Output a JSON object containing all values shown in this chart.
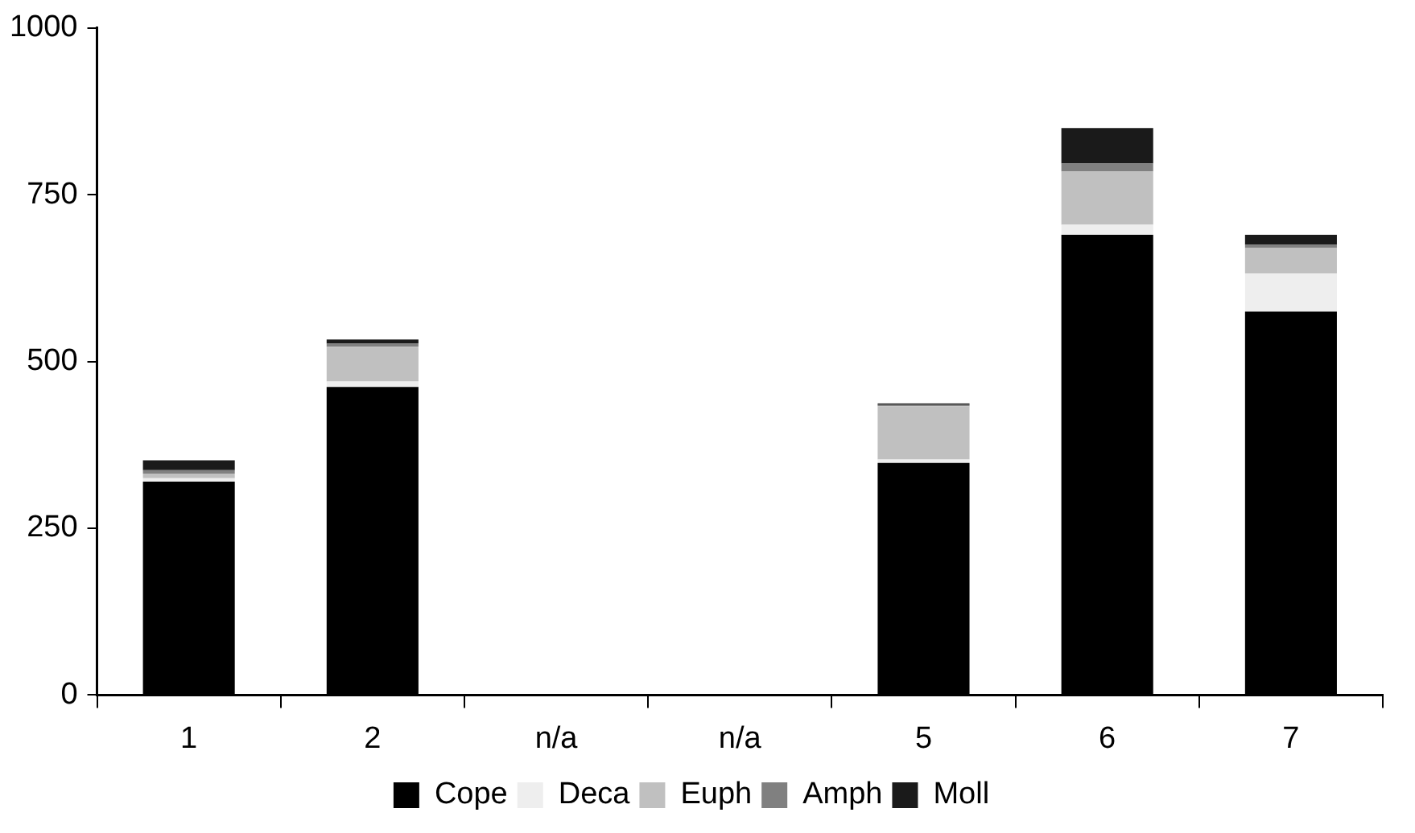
{
  "chart_data": {
    "type": "bar",
    "stacked": true,
    "categories": [
      "1",
      "2",
      "n/a",
      "n/a",
      "5",
      "6",
      "7"
    ],
    "series": [
      {
        "name": "Cope",
        "color": "#000000",
        "values": [
          320,
          462,
          null,
          null,
          348,
          690,
          575
        ]
      },
      {
        "name": "Deca",
        "color": "#eeeeee",
        "values": [
          5,
          8,
          null,
          null,
          5,
          15,
          57
        ]
      },
      {
        "name": "Euph",
        "color": "#c0c0c0",
        "values": [
          7,
          52,
          null,
          null,
          80,
          80,
          38
        ]
      },
      {
        "name": "Amph",
        "color": "#808080",
        "values": [
          5,
          5,
          null,
          null,
          2,
          12,
          5
        ]
      },
      {
        "name": "Moll",
        "color": "#1a1a1a",
        "values": [
          15,
          6,
          null,
          null,
          2,
          53,
          15
        ]
      }
    ],
    "ylim": [
      0,
      1000
    ],
    "yticks": [
      0,
      250,
      500,
      750,
      1000
    ],
    "grid": false,
    "legend": "bottom"
  }
}
